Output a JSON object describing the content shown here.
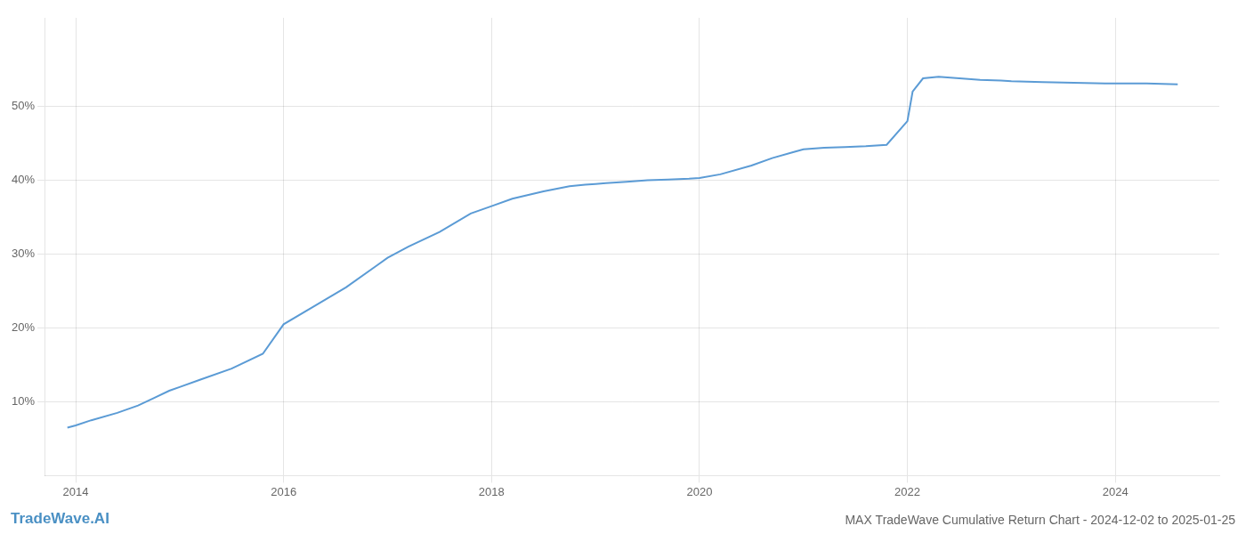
{
  "chart_data": {
    "type": "line",
    "title": "MAX TradeWave Cumulative Return Chart - 2024-12-02 to 2025-01-25",
    "annotations": [
      {
        "text": "TradeWave.AI",
        "color": "#4a90c4"
      }
    ],
    "color": "#5b9bd5",
    "grid": true,
    "x": [
      2013.92,
      2014.0,
      2014.15,
      2014.4,
      2014.6,
      2014.75,
      2014.9,
      2015.0,
      2015.2,
      2015.5,
      2015.8,
      2016.0,
      2016.3,
      2016.6,
      2016.9,
      2017.0,
      2017.2,
      2017.5,
      2017.8,
      2018.0,
      2018.2,
      2018.5,
      2018.75,
      2018.9,
      2019.0,
      2019.1,
      2019.3,
      2019.5,
      2019.7,
      2019.9,
      2020.0,
      2020.2,
      2020.5,
      2020.7,
      2020.9,
      2021.0,
      2021.2,
      2021.4,
      2021.6,
      2021.8,
      2022.0,
      2022.05,
      2022.15,
      2022.3,
      2022.5,
      2022.7,
      2022.9,
      2023.0,
      2023.3,
      2023.6,
      2023.9,
      2024.0,
      2024.3,
      2024.6
    ],
    "values": [
      6.5,
      6.8,
      7.5,
      8.5,
      9.5,
      10.5,
      11.5,
      12.0,
      13.0,
      14.5,
      16.5,
      20.5,
      23.0,
      25.5,
      28.5,
      29.5,
      31.0,
      33.0,
      35.5,
      36.5,
      37.5,
      38.5,
      39.2,
      39.4,
      39.5,
      39.6,
      39.8,
      40.0,
      40.1,
      40.2,
      40.3,
      40.8,
      42.0,
      43.0,
      43.8,
      44.2,
      44.4,
      44.5,
      44.6,
      44.8,
      48.0,
      52.0,
      53.8,
      54.0,
      53.8,
      53.6,
      53.5,
      53.4,
      53.3,
      53.2,
      53.1,
      53.1,
      53.1,
      53.0
    ],
    "xlim": [
      2013.7,
      2025.0
    ],
    "ylim": [
      0,
      62
    ],
    "xticks": [
      2014,
      2016,
      2018,
      2020,
      2022,
      2024
    ],
    "yticks": [
      {
        "value": 10,
        "label": "10%"
      },
      {
        "value": 20,
        "label": "20%"
      },
      {
        "value": 30,
        "label": "30%"
      },
      {
        "value": 40,
        "label": "40%"
      },
      {
        "value": 50,
        "label": "50%"
      }
    ]
  }
}
